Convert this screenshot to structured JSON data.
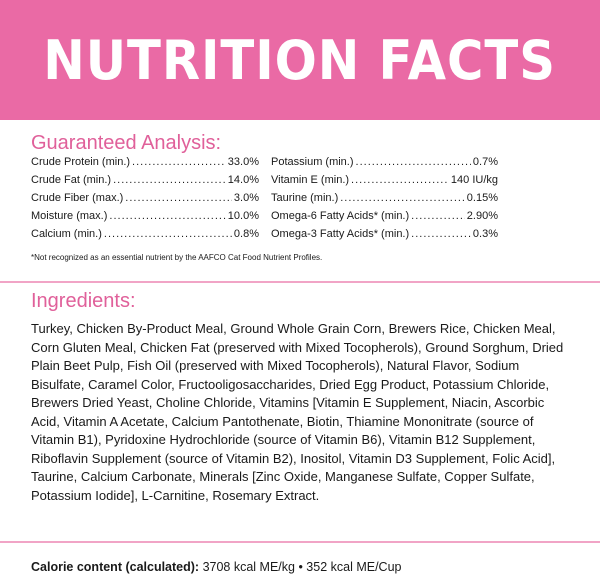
{
  "header": {
    "title": "NUTRITION FACTS"
  },
  "guaranteed_analysis": {
    "title": "Guaranteed Analysis:",
    "left": [
      {
        "label": "Crude Protein (min.)",
        "value": "33.0%"
      },
      {
        "label": "Crude Fat (min.)",
        "value": "14.0%"
      },
      {
        "label": "Crude Fiber (max.)",
        "value": "3.0%"
      },
      {
        "label": "Moisture (max.)",
        "value": "10.0%"
      },
      {
        "label": "Calcium (min.)",
        "value": "0.8%"
      }
    ],
    "right": [
      {
        "label": "Potassium (min.)",
        "value": "0.7%"
      },
      {
        "label": "Vitamin E (min.)",
        "value": "140 IU/kg"
      },
      {
        "label": "Taurine (min.)",
        "value": "0.15%"
      },
      {
        "label": "Omega-6 Fatty Acids* (min.)",
        "value": "2.90%"
      },
      {
        "label": "Omega-3 Fatty Acids* (min.)",
        "value": "0.3%"
      }
    ],
    "footnote": "*Not recognized as an essential nutrient by the AAFCO Cat Food Nutrient Profiles."
  },
  "ingredients": {
    "title": "Ingredients:",
    "text": "Turkey, Chicken By-Product Meal, Ground Whole Grain Corn, Brewers Rice, Chicken Meal, Corn Gluten Meal, Chicken Fat (preserved with Mixed Tocopherols), Ground Sorghum, Dried Plain Beet Pulp, Fish Oil (preserved with Mixed Tocopherols), Natural Flavor, Sodium Bisulfate, Caramel Color, Fructooligosaccharides, Dried Egg Product, Potassium Chloride, Brewers Dried Yeast, Choline Chloride, Vitamins [Vitamin E Supplement, Niacin, Ascorbic Acid, Vitamin A Acetate, Calcium Pantothenate, Biotin, Thiamine Mononitrate (source of Vitamin B1), Pyridoxine Hydrochloride (source of Vitamin B6), Vitamin B12 Supplement, Riboflavin Supplement (source of Vitamin B2), Inositol, Vitamin D3 Supplement, Folic Acid], Taurine, Calcium Carbonate, Minerals [Zinc Oxide, Manganese Sulfate, Copper Sulfate, Potassium Iodide], L-Carnitine, Rosemary Extract."
  },
  "calorie": {
    "label": "Calorie content (calculated):",
    "value": "3708 kcal ME/kg • 352 kcal ME/Cup"
  },
  "colors": {
    "banner": "#ea6aa5",
    "accent": "#e0609a",
    "rule": "#f1a4c6"
  }
}
